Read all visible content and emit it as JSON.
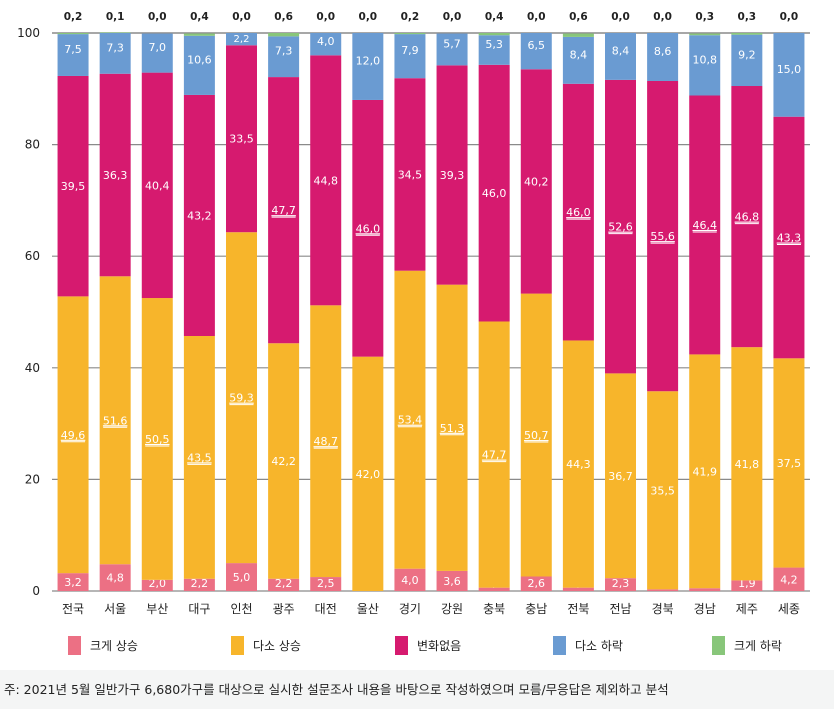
{
  "chart_data": {
    "type": "bar",
    "stacked": true,
    "title": "",
    "xlabel": "",
    "ylabel": "",
    "ylim": [
      0,
      100
    ],
    "yticks": [
      0,
      20,
      40,
      60,
      80,
      100
    ],
    "grid": true,
    "legend_position": "bottom",
    "categories": [
      "전국",
      "서울",
      "부산",
      "대구",
      "인천",
      "광주",
      "대전",
      "울산",
      "경기",
      "강원",
      "충북",
      "충남",
      "전북",
      "전남",
      "경북",
      "경남",
      "제주",
      "세종"
    ],
    "series": [
      {
        "name": "크게 상승",
        "color": "#ec7084",
        "values": [
          3.2,
          4.8,
          2.0,
          2.2,
          5.0,
          2.2,
          2.5,
          0.0,
          4.0,
          3.6,
          0.6,
          2.6,
          0.6,
          2.3,
          0.3,
          0.5,
          1.9,
          4.2
        ],
        "labels": [
          "3,2",
          "4,8",
          "2,0",
          "2,2",
          "5,0",
          "2,2",
          "2,5",
          "0,0",
          "4,0",
          "3,6",
          "0,6",
          "2,6",
          "0,6",
          "2,3",
          "0,3",
          "0,5",
          "1,9",
          "4,2"
        ],
        "underlined": []
      },
      {
        "name": "다소 상승",
        "color": "#f7b52b",
        "values": [
          49.6,
          51.6,
          50.5,
          43.5,
          59.3,
          42.2,
          48.7,
          42.0,
          53.4,
          51.3,
          47.7,
          50.7,
          44.3,
          36.7,
          35.5,
          41.9,
          41.8,
          37.5
        ],
        "labels": [
          "49,6",
          "51,6",
          "50,5",
          "43,5",
          "59,3",
          "42,2",
          "48,7",
          "42,0",
          "53,4",
          "51,3",
          "47,7",
          "50,7",
          "44,3",
          "36,7",
          "35,5",
          "41,9",
          "41,8",
          "37,5"
        ],
        "underlined": [
          0,
          1,
          2,
          3,
          4,
          6,
          8,
          9,
          10,
          11
        ]
      },
      {
        "name": "변화없음",
        "color": "#d61a6f",
        "values": [
          39.5,
          36.3,
          40.4,
          43.2,
          33.5,
          47.7,
          44.8,
          46.0,
          34.5,
          39.3,
          46.0,
          40.2,
          46.0,
          52.6,
          55.6,
          46.4,
          46.8,
          43.3
        ],
        "labels": [
          "39,5",
          "36,3",
          "40,4",
          "43,2",
          "33,5",
          "47,7",
          "44,8",
          "46,0",
          "34,5",
          "39,3",
          "46,0",
          "40,2",
          "46,0",
          "52,6",
          "55,6",
          "46,4",
          "46,8",
          "43,3"
        ],
        "underlined": [
          5,
          7,
          12,
          13,
          14,
          15,
          16,
          17
        ]
      },
      {
        "name": "다소 하락",
        "color": "#6a9bd2",
        "values": [
          7.5,
          7.3,
          7.0,
          10.6,
          2.2,
          7.3,
          4.0,
          12.0,
          7.9,
          5.7,
          5.3,
          6.5,
          8.4,
          8.4,
          8.6,
          10.8,
          9.2,
          15.0
        ],
        "labels": [
          "7,5",
          "7,3",
          "7,0",
          "10,6",
          "2,2",
          "7,3",
          "4,0",
          "12,0",
          "7,9",
          "5,7",
          "5,3",
          "6,5",
          "8,4",
          "8,4",
          "8,6",
          "10,8",
          "9,2",
          "15,0"
        ],
        "underlined": []
      },
      {
        "name": "크게 하락",
        "color": "#88c67a",
        "values": [
          0.2,
          0.1,
          0.0,
          0.4,
          0.0,
          0.6,
          0.0,
          0.0,
          0.2,
          0.0,
          0.4,
          0.0,
          0.6,
          0.0,
          0.0,
          0.3,
          0.3,
          0.0
        ],
        "labels": [
          "0,2",
          "0,1",
          "0,0",
          "0,4",
          "0,0",
          "0,6",
          "0,0",
          "0,0",
          "0,2",
          "0,0",
          "0,4",
          "0,0",
          "0,6",
          "0,0",
          "0,0",
          "0,3",
          "0,3",
          "0,0"
        ],
        "underlined": []
      }
    ]
  },
  "footnote": "주: 2021년 5월 일반가구 6,680가구를 대상으로 실시한 설문조사 내용을 바탕으로 작성하였으며 모름/무응답은 제외하고 분석"
}
